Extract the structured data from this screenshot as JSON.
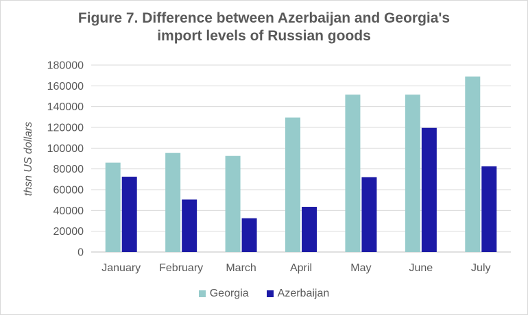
{
  "chart_data": {
    "type": "bar",
    "title_line1": "Figure 7. Difference between Azerbaijan and Georgia's",
    "title_line2": "import levels of Russian goods",
    "xlabel": "",
    "ylabel": "thsn US dollars",
    "ylim": [
      0,
      180000
    ],
    "yticks": [
      "0",
      "20000",
      "40000",
      "60000",
      "80000",
      "100000",
      "120000",
      "140000",
      "160000",
      "180000"
    ],
    "grid": true,
    "legend_position": "bottom",
    "categories": [
      "January",
      "February",
      "March",
      "April",
      "May",
      "June",
      "July"
    ],
    "series": [
      {
        "name": "Georgia",
        "color": "#96cbcb",
        "values": [
          86000,
          95500,
          92500,
          129500,
          151500,
          151500,
          169000
        ]
      },
      {
        "name": "Azerbaijan",
        "color": "#1c1aa6",
        "values": [
          72500,
          50500,
          32500,
          43500,
          72000,
          119500,
          82500
        ]
      }
    ]
  }
}
